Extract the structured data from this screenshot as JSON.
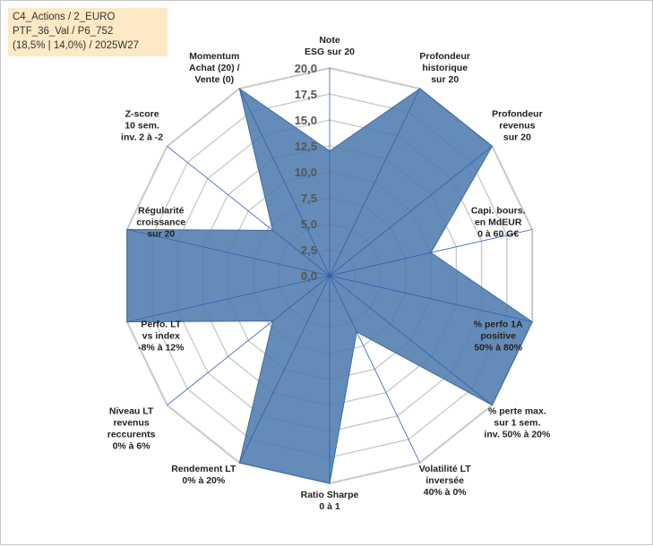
{
  "info_box": {
    "line1": "C4_Actions / 2_EURO",
    "line2": "PTF_36_Val / P6_752",
    "line3": "(18,5% | 14,0%) / 2025W27"
  },
  "colors": {
    "fill": "#4a78ad",
    "stroke": "#3d6a9e",
    "spoke": "#2e5fb0",
    "grid": "#c8c8c8"
  },
  "chart_data": {
    "type": "radar",
    "title": "",
    "rlim": [
      0,
      20
    ],
    "tick_values": [
      0,
      2.5,
      5,
      7.5,
      10,
      12.5,
      15,
      17.5,
      20
    ],
    "tick_labels": [
      "0,0",
      "2,5",
      "5,0",
      "7,5",
      "10,0",
      "12,5",
      "15,0",
      "17,5",
      "20,0"
    ],
    "grid": true,
    "axes": [
      {
        "label": [
          "Note",
          "ESG sur 20"
        ],
        "value": 12
      },
      {
        "label": [
          "Profondeur",
          "historique",
          "sur 20"
        ],
        "value": 20
      },
      {
        "label": [
          "Profondeur",
          "revenus",
          "sur 20"
        ],
        "value": 20
      },
      {
        "label": [
          "Capi. bours.",
          "en MdEUR",
          "0 à 60 G€"
        ],
        "value": 10
      },
      {
        "label": [
          "% perfo 1A",
          "positive",
          "50% à 80%"
        ],
        "value": 20
      },
      {
        "label": [
          "% perte max.",
          "sur 1 sem.",
          "inv. 50% à 20%"
        ],
        "value": 20
      },
      {
        "label": [
          "Volatilité LT",
          "inversée",
          "40% à 0%"
        ],
        "value": 6
      },
      {
        "label": [
          "Ratio Sharpe",
          "0 à 1"
        ],
        "value": 20
      },
      {
        "label": [
          "Rendement LT",
          "0% à 20%"
        ],
        "value": 20
      },
      {
        "label": [
          "Niveau LT",
          "revenus",
          "reccurents",
          "0% à 6%"
        ],
        "value": 7
      },
      {
        "label": [
          "Perfo. LT",
          "vs index",
          "-8% à 12%"
        ],
        "value": 20
      },
      {
        "label": [
          "Régularité",
          "croissance",
          "sur 20"
        ],
        "value": 20
      },
      {
        "label": [
          "Z-score",
          "10 sem.",
          "inv. 2 à -2"
        ],
        "value": 7
      },
      {
        "label": [
          "Momentum",
          "Achat (20) /",
          "Vente (0)"
        ],
        "value": 20
      }
    ]
  }
}
